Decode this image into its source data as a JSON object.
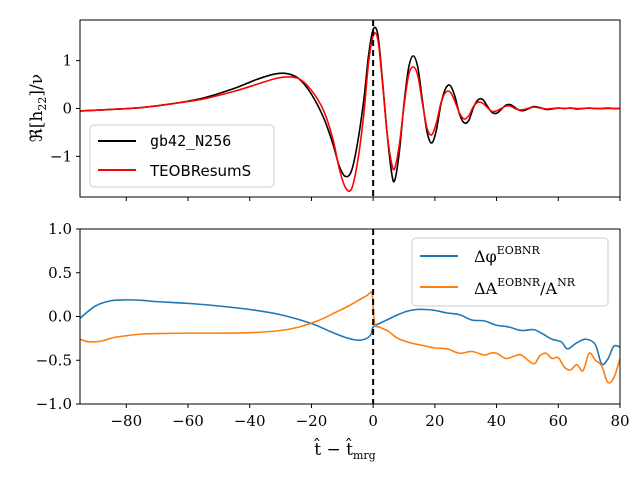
{
  "chart_data": [
    {
      "type": "line",
      "panel": "top",
      "ylabel_main": "ℜ[h",
      "ylabel_sub": "22",
      "ylabel_tail": "]/ν",
      "xlim": [
        -95,
        80
      ],
      "ylim": [
        -1.85,
        1.85
      ],
      "yticks": [
        -1,
        0,
        1
      ],
      "ytick_labels": [
        "−1",
        "0",
        "1"
      ],
      "xticks": [
        -80,
        -60,
        -40,
        -20,
        0,
        20,
        40,
        60,
        80
      ],
      "vline_x": 0,
      "legend_position": "lower-left",
      "series": [
        {
          "name": "gb42_N256",
          "color": "#000000",
          "x": [
            -95,
            -85,
            -75,
            -65,
            -55,
            -45,
            -38,
            -32,
            -28,
            -24,
            -20,
            -16,
            -13,
            -11,
            -9,
            -7,
            -5,
            -3,
            -1.5,
            0,
            1.5,
            3,
            4.5,
            6,
            7,
            8.5,
            10,
            11.5,
            13,
            14.5,
            16,
            17.5,
            19,
            20.5,
            22,
            23.5,
            25,
            26.5,
            28,
            29.5,
            31,
            32.5,
            34,
            35.5,
            37,
            38.5,
            40,
            41.5,
            43,
            44.5,
            46,
            47.5,
            49,
            50.5,
            52,
            54,
            56,
            58,
            60,
            62,
            64,
            66,
            68,
            70,
            72,
            74,
            76,
            78,
            80
          ],
          "y": [
            -0.05,
            -0.02,
            0.02,
            0.1,
            0.22,
            0.42,
            0.6,
            0.72,
            0.73,
            0.62,
            0.3,
            -0.2,
            -0.75,
            -1.2,
            -1.42,
            -1.3,
            -0.7,
            0.2,
            1.1,
            1.65,
            1.55,
            0.6,
            -0.5,
            -1.35,
            -1.5,
            -0.9,
            0.1,
            0.85,
            1.1,
            0.85,
            0.15,
            -0.5,
            -0.72,
            -0.45,
            0.1,
            0.42,
            0.48,
            0.25,
            -0.12,
            -0.3,
            -0.25,
            0.02,
            0.18,
            0.19,
            0.05,
            -0.08,
            -0.1,
            -0.02,
            0.07,
            0.08,
            0.02,
            -0.04,
            -0.04,
            0.0,
            0.04,
            0.02,
            -0.02,
            -0.01,
            0.01,
            0.0,
            0.01,
            -0.01,
            0.0,
            0.01,
            0.0,
            0.0,
            0.01,
            0.0,
            0.0
          ]
        },
        {
          "name": "TEOBResumS",
          "color": "#ff0000",
          "x": [
            -95,
            -85,
            -75,
            -65,
            -55,
            -45,
            -38,
            -32,
            -28,
            -24,
            -20,
            -16,
            -13,
            -11,
            -9,
            -7,
            -5,
            -3,
            -1.5,
            0,
            1.5,
            3,
            4.5,
            6,
            7,
            8.5,
            10,
            11.5,
            13,
            14.5,
            16,
            17.5,
            19,
            20.5,
            22,
            23.5,
            25,
            26.5,
            28,
            29.5,
            31,
            32.5,
            34,
            35.5,
            37,
            38.5,
            40,
            41.5,
            43,
            44.5,
            46,
            47.5,
            49,
            50.5,
            52,
            54,
            56,
            58,
            60,
            62,
            64,
            66,
            68,
            70,
            72,
            74,
            76,
            78,
            80
          ],
          "y": [
            -0.05,
            -0.02,
            0.02,
            0.1,
            0.2,
            0.36,
            0.5,
            0.62,
            0.66,
            0.62,
            0.38,
            -0.05,
            -0.65,
            -1.25,
            -1.65,
            -1.68,
            -1.1,
            -0.1,
            0.95,
            1.52,
            1.45,
            0.55,
            -0.5,
            -1.15,
            -1.25,
            -0.75,
            0.05,
            0.7,
            0.87,
            0.68,
            0.1,
            -0.42,
            -0.55,
            -0.3,
            0.12,
            0.34,
            0.34,
            0.15,
            -0.1,
            -0.22,
            -0.15,
            0.04,
            0.13,
            0.11,
            0.02,
            -0.06,
            -0.05,
            0.0,
            0.05,
            0.05,
            0.0,
            -0.03,
            -0.02,
            0.01,
            0.03,
            0.01,
            -0.01,
            0.0,
            0.01,
            0.0,
            0.01,
            0.0,
            0.0,
            0.01,
            0.0,
            0.0,
            0.0,
            0.0,
            0.0
          ]
        }
      ]
    },
    {
      "type": "line",
      "panel": "bottom",
      "xlabel_main": "t̂ − t̂",
      "xlabel_sub": "mrg",
      "xlim": [
        -95,
        80
      ],
      "ylim": [
        -1.0,
        1.0
      ],
      "yticks": [
        -1.0,
        -0.5,
        0.0,
        0.5,
        1.0
      ],
      "ytick_labels": [
        "−1.0",
        "−0.5",
        "0.0",
        "0.5",
        "1.0"
      ],
      "xticks": [
        -80,
        -60,
        -40,
        -20,
        0,
        20,
        40,
        60,
        80
      ],
      "xtick_labels": [
        "−80",
        "−60",
        "−40",
        "−20",
        "0",
        "20",
        "40",
        "60",
        "80"
      ],
      "vline_x": 0,
      "legend_position": "upper-right",
      "series": [
        {
          "name": "Δφ",
          "name_sup": "EOBNR",
          "name_tail": "",
          "color": "#1f77b4",
          "x": [
            -95,
            -90,
            -85,
            -80,
            -75,
            -70,
            -60,
            -50,
            -40,
            -30,
            -20,
            -14,
            -8,
            -4,
            -1,
            0,
            2,
            5,
            8,
            11,
            14,
            17,
            20,
            24,
            28,
            32,
            36,
            40,
            44,
            48,
            52,
            55,
            58,
            61,
            63,
            66,
            69,
            72,
            74,
            76,
            78,
            80
          ],
          "y": [
            -0.02,
            0.12,
            0.18,
            0.19,
            0.185,
            0.17,
            0.15,
            0.12,
            0.08,
            0.02,
            -0.08,
            -0.17,
            -0.25,
            -0.27,
            -0.22,
            -0.12,
            -0.08,
            -0.03,
            0.02,
            0.06,
            0.08,
            0.08,
            0.07,
            0.04,
            0.02,
            -0.04,
            -0.05,
            -0.1,
            -0.12,
            -0.16,
            -0.15,
            -0.2,
            -0.26,
            -0.29,
            -0.37,
            -0.3,
            -0.26,
            -0.32,
            -0.54,
            -0.49,
            -0.34,
            -0.35
          ]
        },
        {
          "name": "ΔA",
          "name_sup": "EOBNR",
          "name_tail": "/A",
          "name_tail_sup": "NR",
          "color": "#ff7f0e",
          "x": [
            -95,
            -92,
            -88,
            -84,
            -80,
            -75,
            -70,
            -60,
            -50,
            -40,
            -30,
            -24,
            -18,
            -12,
            -8,
            -4,
            -2,
            -1,
            -0.3,
            0.5,
            2,
            5,
            8,
            12,
            16,
            20,
            24,
            28,
            32,
            36,
            38,
            40,
            43,
            46,
            48,
            52,
            54,
            56,
            58,
            60,
            62,
            64,
            66,
            68,
            70,
            72,
            74,
            76,
            78,
            80
          ],
          "y": [
            -0.26,
            -0.29,
            -0.28,
            -0.24,
            -0.22,
            -0.2,
            -0.195,
            -0.19,
            -0.19,
            -0.185,
            -0.16,
            -0.12,
            -0.05,
            0.05,
            0.12,
            0.2,
            0.24,
            0.27,
            0.25,
            -0.08,
            -0.12,
            -0.17,
            -0.25,
            -0.3,
            -0.33,
            -0.36,
            -0.37,
            -0.42,
            -0.4,
            -0.44,
            -0.42,
            -0.42,
            -0.48,
            -0.45,
            -0.44,
            -0.54,
            -0.45,
            -0.42,
            -0.48,
            -0.47,
            -0.58,
            -0.61,
            -0.55,
            -0.62,
            -0.42,
            -0.5,
            -0.56,
            -0.75,
            -0.7,
            -0.48
          ]
        }
      ]
    }
  ]
}
